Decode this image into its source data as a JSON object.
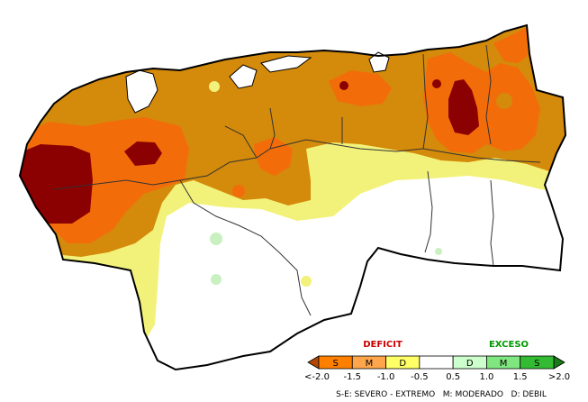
{
  "legend": {
    "deficit_title": "DEFICIT",
    "exceso_title": "EXCESO",
    "deficit_color": "#cc0000",
    "exceso_color": "#009900",
    "segments": [
      {
        "label": "S",
        "color": "#ff7f00"
      },
      {
        "label": "M",
        "color": "#ffa64d"
      },
      {
        "label": "D",
        "color": "#ffff66"
      },
      {
        "label": "",
        "color": "#ffffff"
      },
      {
        "label": "D",
        "color": "#ccffcc"
      },
      {
        "label": "M",
        "color": "#80e680"
      },
      {
        "label": "S",
        "color": "#33bb33"
      }
    ],
    "ticks": [
      "<-2.0",
      "-1.5",
      "-1.0",
      "-0.5",
      "0.5",
      "1.0",
      "1.5",
      ">2.0"
    ],
    "left_arrow_color": "#b34700",
    "right_arrow_color": "#1a7a1a",
    "footnote": "S-E: SEVERO - EXTREMO   M: MODERADO   D: DEBIL"
  },
  "map_colors": {
    "extreme": "#8b0000",
    "severe": "#f26d0a",
    "moderate": "#d48a0a",
    "weak": "#f2f27a",
    "normal": "#ffffff",
    "excess_weak": "#c8f0c0",
    "border": "#000000",
    "state_lines": "#333333"
  }
}
